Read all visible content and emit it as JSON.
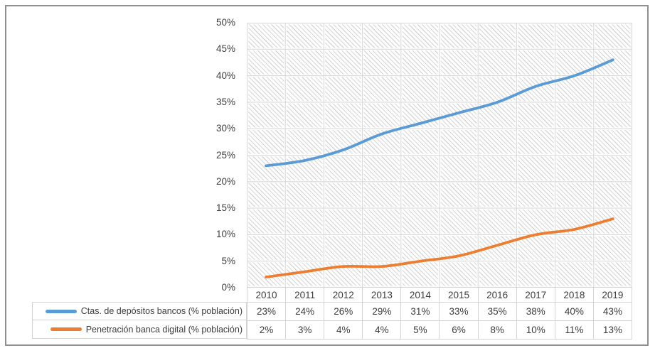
{
  "chart_data": {
    "type": "line",
    "title": "",
    "categories": [
      "2010",
      "2011",
      "2012",
      "2013",
      "2014",
      "2015",
      "2016",
      "2017",
      "2018",
      "2019"
    ],
    "series": [
      {
        "name": "Ctas. de depósitos bancos (% población)",
        "values": [
          23,
          24,
          26,
          29,
          31,
          33,
          35,
          38,
          40,
          43
        ],
        "labels": [
          "23%",
          "24%",
          "26%",
          "29%",
          "31%",
          "33%",
          "35%",
          "38%",
          "40%",
          "43%"
        ],
        "color": "#5B9BD5"
      },
      {
        "name": "Penetración banca digital (% población)",
        "values": [
          2,
          3,
          4,
          4,
          5,
          6,
          8,
          10,
          11,
          13
        ],
        "labels": [
          "2%",
          "3%",
          "4%",
          "4%",
          "5%",
          "6%",
          "8%",
          "10%",
          "11%",
          "13%"
        ],
        "color": "#ED7D31"
      }
    ],
    "y_axis": {
      "min": 0,
      "max": 50,
      "step": 5,
      "tick_labels": [
        "0%",
        "5%",
        "10%",
        "15%",
        "20%",
        "25%",
        "30%",
        "35%",
        "40%",
        "45%",
        "50%"
      ],
      "format": "percent"
    },
    "x_axis": {
      "label": ""
    },
    "grid": {
      "horizontal": true,
      "vertical": true,
      "color": "#d9d9d9"
    },
    "plot_background": "light-downward-diagonal-hatch",
    "legend_position": "bottom-left",
    "data_table_shown": true,
    "line_style": "smooth",
    "ylim": [
      0,
      50
    ]
  },
  "styles": {
    "frame_border_color": "#8f8f8f",
    "table_border_color": "#d3d3d3",
    "axis_text_color": "#3f3f3f"
  }
}
